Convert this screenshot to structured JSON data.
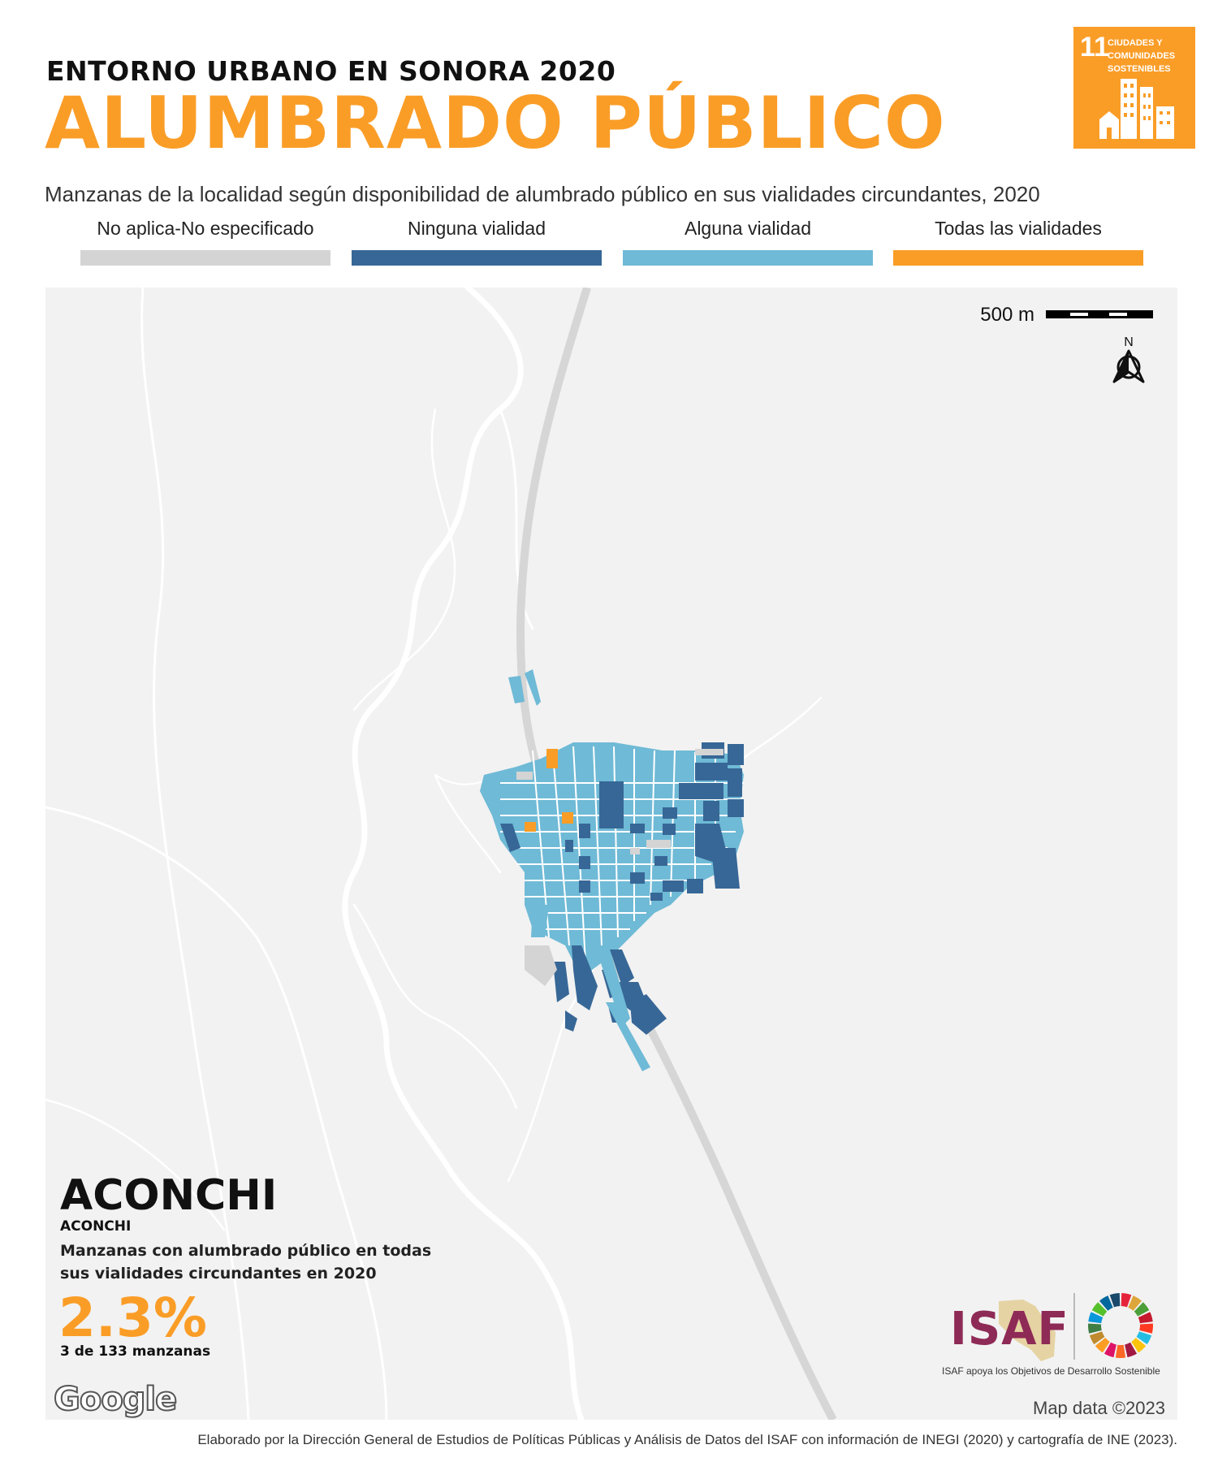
{
  "header": {
    "supertitle": "ENTORNO URBANO EN SONORA 2020",
    "title": "ALUMBRADO PÚBLICO",
    "subtitle": "Manzanas de la localidad según disponibilidad de alumbrado público en sus vialidades circundantes, 2020"
  },
  "sdg_badge": {
    "number": "11",
    "label_lines": [
      "CIUDADES Y",
      "COMUNIDADES",
      "SOSTENIBLES"
    ],
    "color": "#fa9d27"
  },
  "legend": [
    {
      "label": "No aplica-No especificado",
      "color": "#d4d4d4"
    },
    {
      "label": "Ninguna vialidad",
      "color": "#376796"
    },
    {
      "label": "Alguna vialidad",
      "color": "#6fbad6"
    },
    {
      "label": "Todas las vialidades",
      "color": "#fa9d27"
    }
  ],
  "map": {
    "scale_label": "500 m",
    "north_label": "N",
    "attribution": "Map data ©2023",
    "provider_logo": "Google"
  },
  "locality": {
    "municipality": "ACONCHI",
    "locality": "ACONCHI",
    "stat_description": "Manzanas con alumbrado público en todas sus vialidades circundantes en 2020",
    "stat_value": "2.3%",
    "stat_count": "3 de 133 manzanas"
  },
  "branding": {
    "isaf_logo_text": "ISAF",
    "tagline": "ISAF apoya los Objetivos de Desarrollo Sostenible",
    "isaf_color": "#8e2a56"
  },
  "footer": {
    "credit": "Elaborado por la Dirección General de Estudios de Políticas Públicas y Análisis de Datos del ISAF con información de INEGI (2020) y cartografía de INE (2023)."
  }
}
